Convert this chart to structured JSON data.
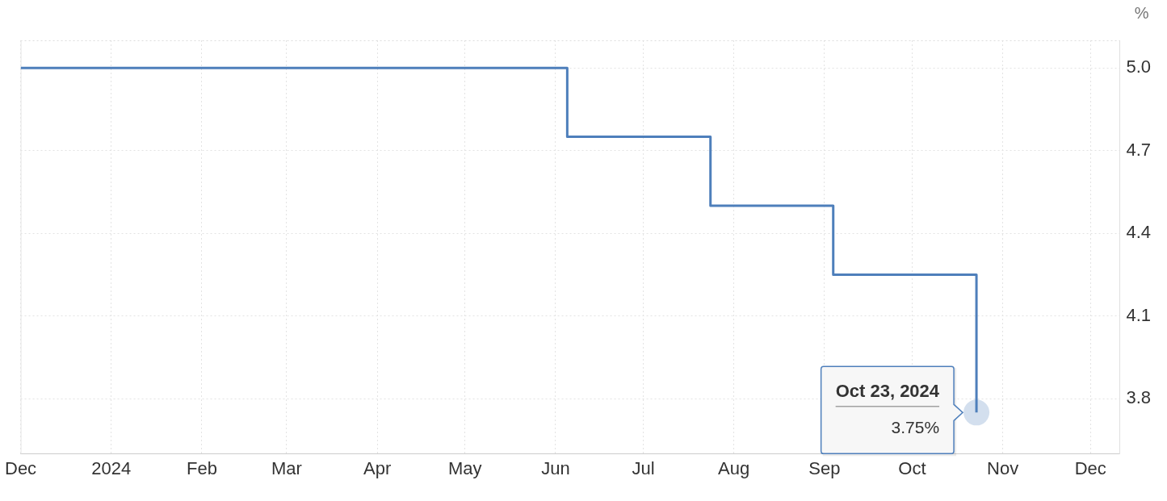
{
  "chart_data": {
    "type": "step",
    "ylabel": "%",
    "x": [
      "2023-12-01",
      "2024-06-05",
      "2024-07-24",
      "2024-09-04",
      "2024-10-23"
    ],
    "values": [
      5.0,
      4.75,
      4.5,
      4.25,
      3.75
    ],
    "color": "#4e7fbb",
    "xlim": [
      "2023-12-01",
      "2024-12-11"
    ],
    "xticks": [
      {
        "value": "2023-12-01",
        "label": "Dec"
      },
      {
        "value": "2024-01-01",
        "label": "2024"
      },
      {
        "value": "2024-02-01",
        "label": "Feb"
      },
      {
        "value": "2024-03-01",
        "label": "Mar"
      },
      {
        "value": "2024-04-01",
        "label": "Apr"
      },
      {
        "value": "2024-05-01",
        "label": "May"
      },
      {
        "value": "2024-06-01",
        "label": "Jun"
      },
      {
        "value": "2024-07-01",
        "label": "Jul"
      },
      {
        "value": "2024-08-01",
        "label": "Aug"
      },
      {
        "value": "2024-09-01",
        "label": "Sep"
      },
      {
        "value": "2024-10-01",
        "label": "Oct"
      },
      {
        "value": "2024-11-01",
        "label": "Nov"
      },
      {
        "value": "2024-12-01",
        "label": "Dec"
      }
    ],
    "ylim": [
      3.6,
      5.1
    ],
    "yticks": [
      3.8,
      4.1,
      4.4,
      4.7,
      {
        "value": 5.0,
        "label": "5.0"
      }
    ],
    "grid": true,
    "annotations": [
      {
        "text": "Oct 23, 2024",
        "x": "2024-10-23",
        "y": 3.75
      },
      {
        "text": "3.75%",
        "x": "2024-10-23",
        "y": 3.75
      }
    ]
  }
}
